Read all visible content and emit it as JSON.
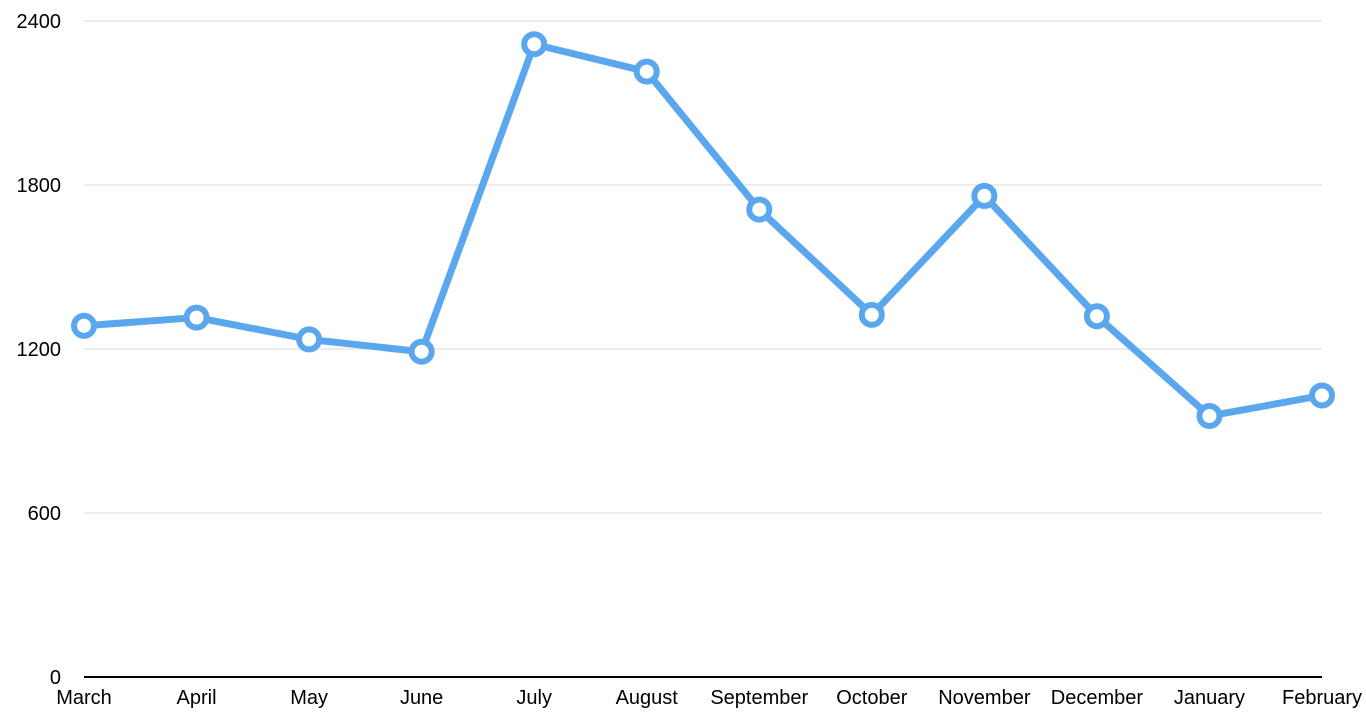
{
  "chart_data": {
    "type": "line",
    "categories": [
      "March",
      "April",
      "May",
      "June",
      "July",
      "August",
      "September",
      "October",
      "November",
      "December",
      "January",
      "February"
    ],
    "series": [
      {
        "values": [
          1285,
          1315,
          1235,
          1190,
          2315,
          2215,
          1710,
          1325,
          1760,
          1320,
          955,
          1030
        ],
        "color": "#5aa7ee"
      }
    ],
    "ylim": [
      0,
      2400
    ],
    "yticks": [
      0,
      600,
      1200,
      1800,
      2400
    ],
    "grid": true,
    "legend": "none"
  }
}
